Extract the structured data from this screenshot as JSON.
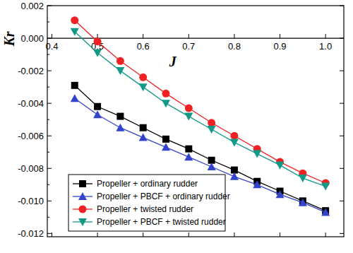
{
  "chart_data": {
    "type": "line",
    "x_label": "J",
    "y_label": "Kr",
    "x": [
      0.45,
      0.5,
      0.55,
      0.6,
      0.65,
      0.7,
      0.75,
      0.8,
      0.85,
      0.9,
      0.95,
      1.0
    ],
    "xlim": [
      0.39,
      1.04
    ],
    "xticks": [
      0.4,
      0.5,
      0.6,
      0.7,
      0.8,
      0.9,
      {
        "value": 1,
        "label": "1.0"
      }
    ],
    "ylim": [
      -0.0122,
      0.002
    ],
    "yticks": [
      {
        "value": -0.012,
        "label": "-0.012"
      },
      {
        "value": -0.01,
        "label": "-0.010"
      },
      {
        "value": -0.008,
        "label": "-0.008"
      },
      {
        "value": -0.006,
        "label": "-0.006"
      },
      {
        "value": -0.004,
        "label": "-0.004"
      },
      {
        "value": -0.002,
        "label": "-0.002"
      },
      {
        "value": 0,
        "label": "0.000"
      },
      {
        "value": 0.002,
        "label": "0.002"
      }
    ],
    "grid": false,
    "legend": "lower left",
    "series": [
      {
        "name": "Propeller + ordinary rudder",
        "color": "#000000",
        "marker": "square",
        "values": [
          -0.0029,
          -0.0042,
          -0.0048,
          -0.0055,
          -0.0062,
          -0.0068,
          -0.0075,
          -0.0081,
          -0.0088,
          -0.0094,
          -0.01,
          -0.0106
        ]
      },
      {
        "name": "Propeller + PBCF + ordinary rudder",
        "color": "#3344cc",
        "marker": "triangle-up",
        "values": [
          -0.0037,
          -0.0047,
          -0.0055,
          -0.0061,
          -0.0067,
          -0.0073,
          -0.0079,
          -0.0085,
          -0.009,
          -0.0096,
          -0.0101,
          -0.0107
        ]
      },
      {
        "name": "Propeller + twisted rudder",
        "color": "#ee2222",
        "marker": "circle",
        "values": [
          0.0011,
          -0.0002,
          -0.0014,
          -0.0024,
          -0.0034,
          -0.0043,
          -0.0052,
          -0.006,
          -0.0068,
          -0.0076,
          -0.0083,
          -0.0089
        ]
      },
      {
        "name": "Propeller + PBCF + twisted rudder",
        "color": "#119988",
        "marker": "triangle-down",
        "values": [
          0.0004,
          -0.0009,
          -0.002,
          -0.003,
          -0.004,
          -0.0048,
          -0.0056,
          -0.0064,
          -0.0071,
          -0.0078,
          -0.0086,
          -0.0091
        ]
      }
    ]
  }
}
